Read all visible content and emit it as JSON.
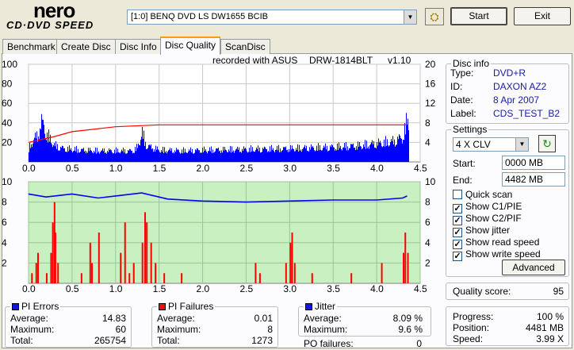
{
  "app": {
    "logo_top": "nero",
    "logo_bottom": "CD·DVD SPEED"
  },
  "header": {
    "drive": "[1:0]  BENQ DVD LS DW1655 BCIB",
    "start_label": "Start",
    "exit_label": "Exit"
  },
  "tabs": [
    {
      "label": "Benchmark"
    },
    {
      "label": "Create Disc"
    },
    {
      "label": "Disc Info"
    },
    {
      "label": "Disc Quality"
    },
    {
      "label": "ScanDisc"
    }
  ],
  "active_tab": "Disc Quality",
  "recorded": {
    "label": "recorded with ASUS",
    "drive": "DRW-1814BLT",
    "version": "v1.10"
  },
  "disc_info": {
    "title": "Disc info",
    "type_label": "Type:",
    "type": "DVD+R",
    "id_label": "ID:",
    "id": "DAXON AZ2",
    "date_label": "Date:",
    "date": "8 Apr 2007",
    "label_label": "Label:",
    "label": "CDS_TEST_B2"
  },
  "settings": {
    "title": "Settings",
    "speed": "4 X CLV",
    "start_label": "Start:",
    "start": "0000 MB",
    "end_label": "End:",
    "end": "4482 MB",
    "checks": [
      {
        "label": "Quick scan",
        "checked": false
      },
      {
        "label": "Show C1/PIE",
        "checked": true
      },
      {
        "label": "Show C2/PIF",
        "checked": true
      },
      {
        "label": "Show jitter",
        "checked": true
      },
      {
        "label": "Show read speed",
        "checked": true
      },
      {
        "label": "Show write speed",
        "checked": true
      }
    ],
    "advanced_label": "Advanced"
  },
  "quality": {
    "label": "Quality score:",
    "value": "95"
  },
  "progress": {
    "progress_label": "Progress:",
    "progress": "100 %",
    "position_label": "Position:",
    "position": "4481 MB",
    "speed_label": "Speed:",
    "speed": "3.99 X"
  },
  "pi_errors": {
    "title": "PI Errors",
    "color": "#1414e0",
    "avg_label": "Average:",
    "avg": "14.83",
    "max_label": "Maximum:",
    "max": "60",
    "total_label": "Total:",
    "total": "265754"
  },
  "pi_failures": {
    "title": "PI Failures",
    "color": "#e01414",
    "avg_label": "Average:",
    "avg": "0.01",
    "max_label": "Maximum:",
    "max": "8",
    "total_label": "Total:",
    "total": "1273"
  },
  "jitter": {
    "title": "Jitter",
    "color": "#1414e0",
    "avg_label": "Average:",
    "avg": "8.09 %",
    "max_label": "Maximum:",
    "max": "9.6 %",
    "po_label": "PO failures:",
    "po": "0"
  },
  "chart_data": [
    {
      "type": "bar",
      "name": "PI Errors",
      "x_ticks": [
        "0.0",
        "0.5",
        "1.0",
        "1.5",
        "2.0",
        "2.5",
        "3.0",
        "3.5",
        "4.0",
        "4.5"
      ],
      "y_left_ticks": [
        "100",
        "80",
        "60",
        "40",
        "20"
      ],
      "y_right_ticks": [
        "20",
        "16",
        "12",
        "8",
        "4"
      ],
      "xlim": [
        0,
        4.5
      ],
      "ylim": [
        0,
        100
      ],
      "y2lim": [
        0,
        20
      ],
      "series": [
        {
          "color": "#0000ff",
          "x": [
            0.0,
            0.05,
            0.1,
            0.15,
            0.2,
            0.3,
            0.4,
            0.6,
            0.8,
            1.0,
            1.2,
            1.25,
            1.3,
            1.35,
            1.5,
            1.8,
            2.0,
            2.5,
            3.0,
            3.5,
            3.8,
            4.0,
            4.2,
            4.3,
            4.35,
            4.37
          ],
          "values": [
            18,
            30,
            35,
            55,
            38,
            22,
            18,
            16,
            15,
            15,
            15,
            20,
            40,
            22,
            16,
            15,
            16,
            17,
            18,
            20,
            22,
            25,
            28,
            34,
            58,
            50
          ]
        },
        {
          "color": "#ff0000",
          "x": [
            0.0,
            0.3,
            0.5,
            1.0,
            1.5,
            2.0,
            2.5,
            3.0,
            3.5,
            4.0,
            4.2,
            4.35
          ],
          "y2_values": [
            4,
            5.2,
            6.2,
            7.2,
            7.6,
            7.6,
            7.6,
            7.6,
            7.6,
            7.6,
            7.6,
            7.6
          ]
        }
      ]
    },
    {
      "type": "bar",
      "name": "PI Failures",
      "x_ticks": [
        "0.0",
        "0.5",
        "1.0",
        "1.5",
        "2.0",
        "2.5",
        "3.0",
        "3.5",
        "4.0",
        "4.5"
      ],
      "y_left_ticks": [
        "10",
        "8",
        "6",
        "4",
        "2"
      ],
      "y_right_ticks": [
        "10",
        "8",
        "6",
        "4",
        "2"
      ],
      "xlim": [
        0,
        4.5
      ],
      "ylim": [
        0,
        10
      ],
      "y2lim": [
        0,
        10
      ],
      "series": [
        {
          "color": "#ff0000",
          "x": [
            0.03,
            0.08,
            0.1,
            0.2,
            0.25,
            0.27,
            0.29,
            0.3,
            0.33,
            0.6,
            0.7,
            0.72,
            0.8,
            1.05,
            1.1,
            1.15,
            1.2,
            1.3,
            1.33,
            1.35,
            1.4,
            1.45,
            1.55,
            1.75,
            2.6,
            2.65,
            2.95,
            3.0,
            3.02,
            3.05,
            3.25,
            3.7,
            4.05,
            4.3,
            4.32,
            4.35
          ],
          "values": [
            1,
            2,
            3,
            1,
            3,
            6,
            8,
            5,
            2,
            1,
            4,
            2,
            5,
            3,
            6,
            1,
            2,
            4,
            7,
            6,
            4,
            2,
            1,
            1,
            2,
            1,
            2,
            4,
            5,
            2,
            1,
            1,
            2,
            3,
            5,
            3
          ]
        },
        {
          "color": "#0000ff",
          "x": [
            0.0,
            0.2,
            0.5,
            0.8,
            1.0,
            1.3,
            1.6,
            2.0,
            2.5,
            3.0,
            3.5,
            4.0,
            4.3,
            4.35
          ],
          "y2_values": [
            8.8,
            8.5,
            8.8,
            8.4,
            8.6,
            8.9,
            8.3,
            8.1,
            8.0,
            8.1,
            8.2,
            8.2,
            8.4,
            8.6
          ]
        }
      ]
    }
  ]
}
